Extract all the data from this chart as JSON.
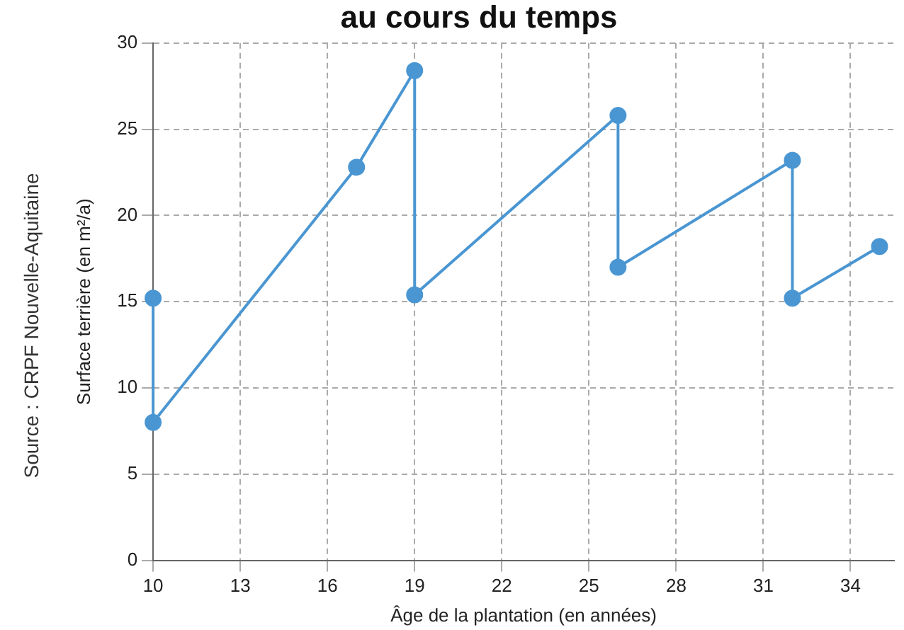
{
  "chart_data": {
    "type": "line",
    "title": "au cours du temps",
    "xlabel": "Âge de la plantation (en années)",
    "ylabel": "Surface terrière (en m²/a)",
    "annotations": [
      "Source : CRPF Nouvelle-Aquitaine"
    ],
    "series": [
      {
        "color": "#4a96d2",
        "x": [
          10,
          10,
          17,
          19,
          19,
          26,
          26,
          32,
          32,
          35
        ],
        "values": [
          15.2,
          8,
          22.8,
          28.4,
          15.4,
          25.8,
          17,
          23.2,
          15.2,
          18.2
        ]
      }
    ],
    "xlim": [
      10,
      35.5
    ],
    "xticks": [
      10,
      13,
      16,
      19,
      22,
      25,
      28,
      31,
      34
    ],
    "ylim": [
      0,
      30
    ],
    "yticks": [
      0,
      5,
      10,
      15,
      20,
      25,
      30
    ],
    "grid": true,
    "legend": false,
    "marker": "circle",
    "line_style": "solid"
  }
}
